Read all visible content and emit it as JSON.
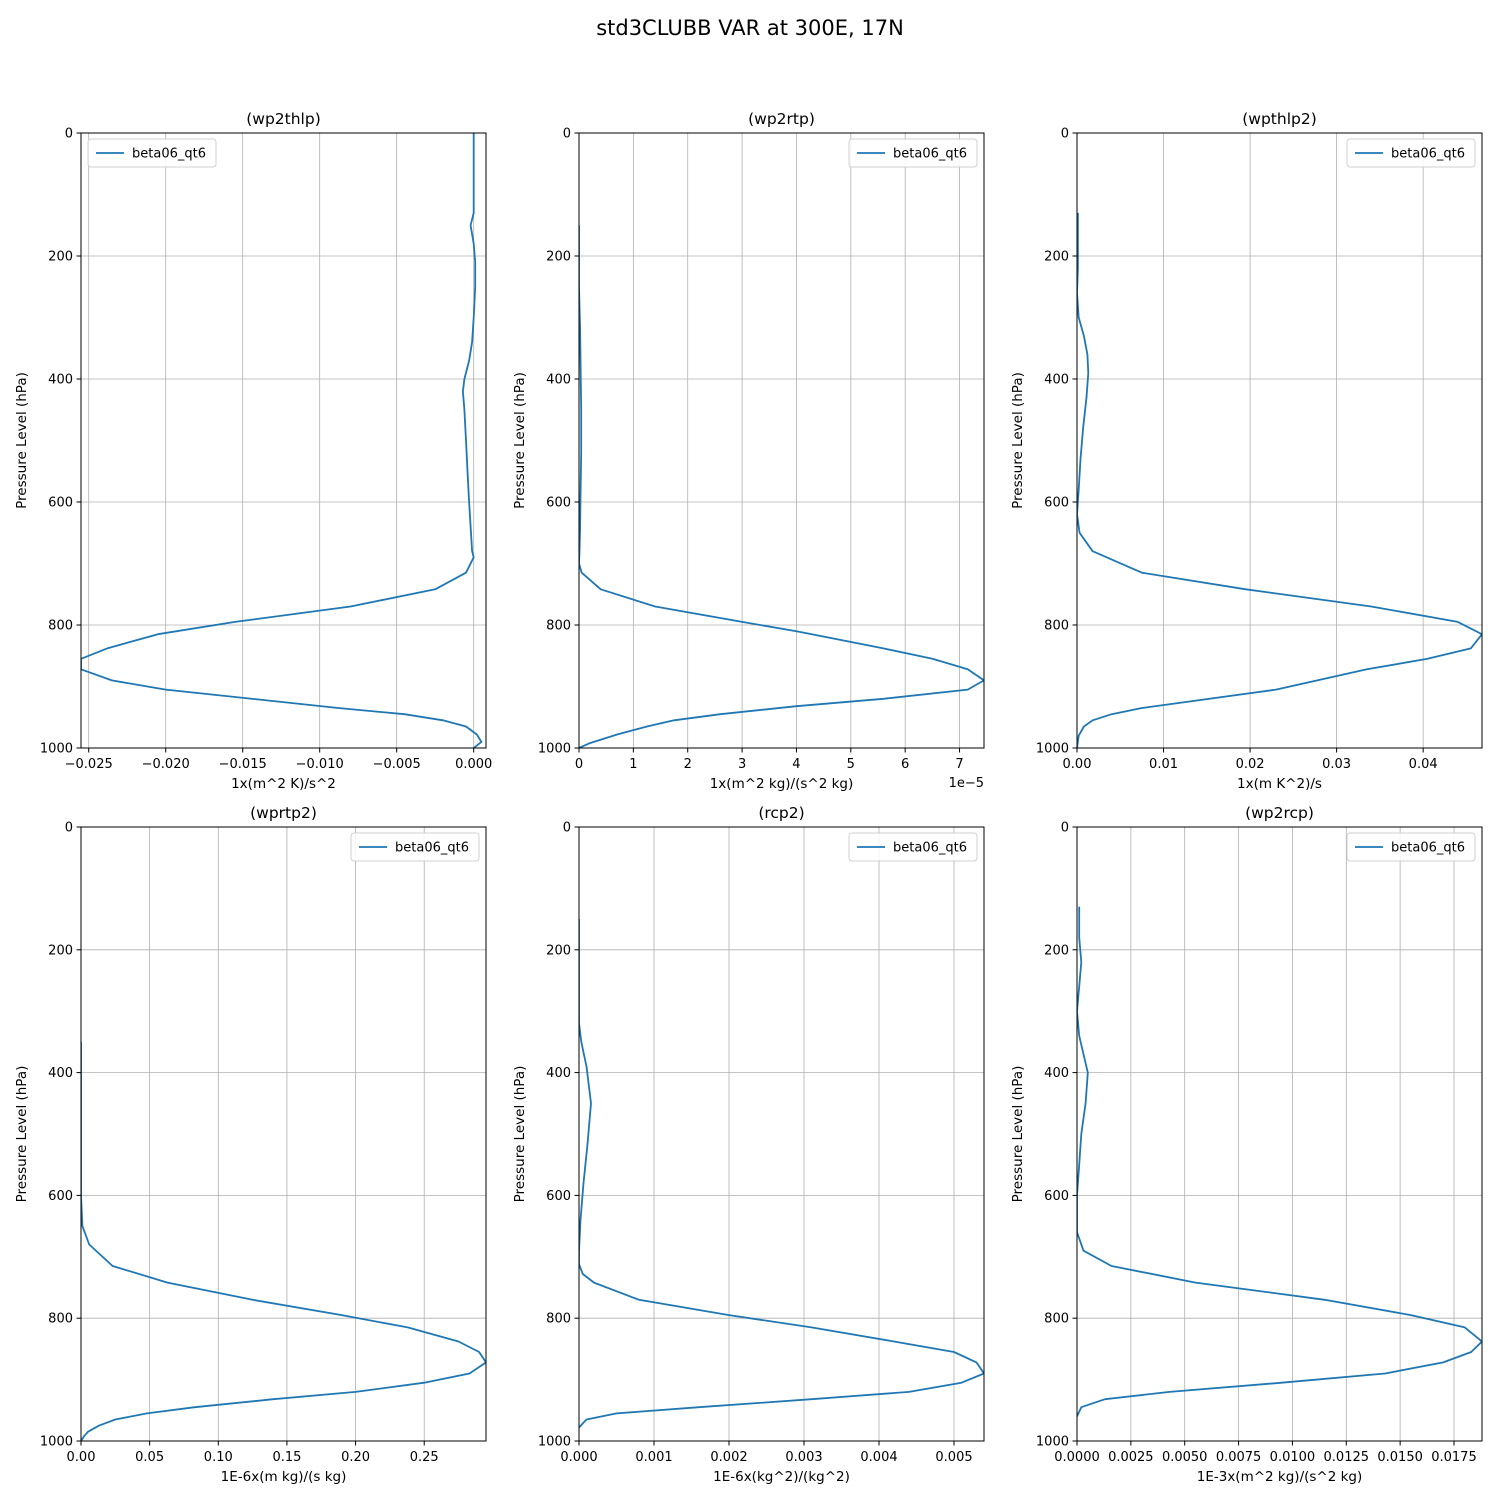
{
  "figure": {
    "title": "std3CLUBB VAR at 300E, 17N"
  },
  "chart_data": [
    {
      "type": "line",
      "title": "(wp2thlp)",
      "xlabel": "1x(m^2 K)/s^2",
      "ylabel": "Pressure Level (hPa)",
      "xlim": [
        -0.0255,
        0.0008
      ],
      "ylim": [
        1000,
        0
      ],
      "x_ticks": [
        -0.025,
        -0.02,
        -0.015,
        -0.01,
        -0.005,
        0.0
      ],
      "x_tick_labels": [
        "−0.025",
        "−0.020",
        "−0.015",
        "−0.010",
        "−0.005",
        "0.000"
      ],
      "y_ticks": [
        0,
        200,
        400,
        600,
        800,
        1000
      ],
      "y_tick_labels": [
        "0",
        "200",
        "400",
        "600",
        "800",
        "1000"
      ],
      "x_offset_label": "",
      "grid": true,
      "legend_position": "upper-left",
      "series": [
        {
          "name": "beta06_qt6",
          "color": "#1f77b4",
          "x": [
            0.0,
            0.0,
            0.0,
            0.0,
            -0.0002,
            0.0,
            0.0001,
            0.0001,
            0.0,
            -0.0001,
            -0.0003,
            -0.0006,
            -0.0007,
            -0.0006,
            -0.0005,
            -0.0004,
            -0.0003,
            -0.0002,
            -0.0001,
            0.0,
            -0.0005,
            -0.0025,
            -0.008,
            -0.0155,
            -0.0205,
            -0.0238,
            -0.0255,
            -0.0255,
            -0.0235,
            -0.02,
            -0.0088,
            -0.0045,
            -0.002,
            -0.0005,
            0.0002,
            0.0005,
            0.0
          ],
          "y": [
            0,
            50,
            100,
            130,
            150,
            180,
            210,
            250,
            300,
            340,
            370,
            400,
            420,
            450,
            500,
            550,
            600,
            640,
            680,
            690,
            715,
            742,
            770,
            795,
            815,
            838,
            855,
            872,
            890,
            905,
            935,
            945,
            955,
            965,
            978,
            990,
            1000
          ]
        }
      ]
    },
    {
      "type": "line",
      "title": "(wp2rtp)",
      "xlabel": "1x(m^2 kg)/(s^2 kg)",
      "ylabel": "Pressure Level (hPa)",
      "xlim": [
        0,
        7.45
      ],
      "ylim": [
        1000,
        0
      ],
      "x_ticks": [
        0,
        1,
        2,
        3,
        4,
        5,
        6,
        7
      ],
      "x_tick_labels": [
        "0",
        "1",
        "2",
        "3",
        "4",
        "5",
        "6",
        "7"
      ],
      "y_ticks": [
        0,
        200,
        400,
        600,
        800,
        1000
      ],
      "y_tick_labels": [
        "0",
        "200",
        "400",
        "600",
        "800",
        "1000"
      ],
      "x_offset_label": "1e−5",
      "grid": true,
      "legend_position": "upper-right",
      "series": [
        {
          "name": "beta06_qt6",
          "color": "#1f77b4",
          "x": [
            0.0,
            0.0,
            0.02,
            0.03,
            0.04,
            0.04,
            0.03,
            0.02,
            0.01,
            0.0,
            0.05,
            0.4,
            1.4,
            3.0,
            4.0,
            5.6,
            6.5,
            7.15,
            7.45,
            7.15,
            5.6,
            4.0,
            2.6,
            1.75,
            1.25,
            0.7,
            0.2,
            0.0
          ],
          "y": [
            150,
            250,
            320,
            380,
            450,
            520,
            580,
            640,
            680,
            700,
            715,
            742,
            770,
            795,
            810,
            838,
            855,
            872,
            890,
            905,
            920,
            932,
            945,
            955,
            965,
            978,
            992,
            1000
          ]
        }
      ]
    },
    {
      "type": "line",
      "title": "(wpthlp2)",
      "xlabel": "1x(m K^2)/s",
      "ylabel": "Pressure Level (hPa)",
      "xlim": [
        0,
        0.0468
      ],
      "ylim": [
        1000,
        0
      ],
      "x_ticks": [
        0.0,
        0.01,
        0.02,
        0.03,
        0.04
      ],
      "x_tick_labels": [
        "0.00",
        "0.01",
        "0.02",
        "0.03",
        "0.04"
      ],
      "y_ticks": [
        0,
        200,
        400,
        600,
        800,
        1000
      ],
      "y_tick_labels": [
        "0",
        "200",
        "400",
        "600",
        "800",
        "1000"
      ],
      "x_offset_label": "",
      "grid": true,
      "legend_position": "upper-right",
      "series": [
        {
          "name": "beta06_qt6",
          "color": "#1f77b4",
          "x": [
            0.0001,
            0.0001,
            0.0001,
            0.0,
            0.0002,
            0.0008,
            0.0012,
            0.0013,
            0.0011,
            0.0007,
            0.0004,
            0.0002,
            0.0,
            0.0003,
            0.0018,
            0.0075,
            0.0195,
            0.034,
            0.044,
            0.0468,
            0.0455,
            0.0405,
            0.0335,
            0.023,
            0.0075,
            0.004,
            0.0018,
            0.0008,
            0.0002,
            0.0
          ],
          "y": [
            130,
            180,
            220,
            260,
            300,
            330,
            360,
            390,
            430,
            480,
            530,
            580,
            620,
            650,
            680,
            715,
            742,
            770,
            795,
            815,
            838,
            855,
            872,
            905,
            935,
            945,
            955,
            965,
            980,
            1000
          ]
        }
      ]
    },
    {
      "type": "line",
      "title": "(wprtp2)",
      "xlabel": "1E-6x(m kg)/(s kg)",
      "ylabel": "Pressure Level (hPa)",
      "xlim": [
        0,
        0.295
      ],
      "ylim": [
        1000,
        0
      ],
      "x_ticks": [
        0.0,
        0.05,
        0.1,
        0.15,
        0.2,
        0.25
      ],
      "x_tick_labels": [
        "0.00",
        "0.05",
        "0.10",
        "0.15",
        "0.20",
        "0.25"
      ],
      "y_ticks": [
        0,
        200,
        400,
        600,
        800,
        1000
      ],
      "y_tick_labels": [
        "0",
        "200",
        "400",
        "600",
        "800",
        "1000"
      ],
      "x_offset_label": "",
      "grid": true,
      "legend_position": "upper-right",
      "series": [
        {
          "name": "beta06_qt6",
          "color": "#1f77b4",
          "x": [
            0.0,
            0.0,
            0.0,
            0.0,
            0.001,
            0.006,
            0.023,
            0.063,
            0.125,
            0.19,
            0.238,
            0.275,
            0.29,
            0.295,
            0.283,
            0.25,
            0.2,
            0.14,
            0.083,
            0.048,
            0.025,
            0.013,
            0.005,
            0.002,
            0.0
          ],
          "y": [
            350,
            450,
            550,
            600,
            650,
            680,
            715,
            742,
            770,
            795,
            815,
            838,
            855,
            872,
            890,
            905,
            920,
            932,
            945,
            955,
            965,
            975,
            985,
            993,
            1000
          ]
        }
      ]
    },
    {
      "type": "line",
      "title": "(rcp2)",
      "xlabel": "1E-6x(kg^2)/(kg^2)",
      "ylabel": "Pressure Level (hPa)",
      "xlim": [
        0,
        0.0054
      ],
      "ylim": [
        1000,
        0
      ],
      "x_ticks": [
        0.0,
        0.001,
        0.002,
        0.003,
        0.004,
        0.005
      ],
      "x_tick_labels": [
        "0.000",
        "0.001",
        "0.002",
        "0.003",
        "0.004",
        "0.005"
      ],
      "y_ticks": [
        0,
        200,
        400,
        600,
        800,
        1000
      ],
      "y_tick_labels": [
        "0",
        "200",
        "400",
        "600",
        "800",
        "1000"
      ],
      "x_offset_label": "",
      "grid": true,
      "legend_position": "upper-right",
      "series": [
        {
          "name": "beta06_qt6",
          "color": "#1f77b4",
          "x": [
            0.0,
            0.0,
            0.0,
            3e-05,
            0.0001,
            0.00016,
            0.00011,
            6e-05,
            2e-05,
            0.0,
            0.0,
            5e-05,
            0.0002,
            0.0008,
            0.002,
            0.0031,
            0.0042,
            0.005,
            0.0053,
            0.0054,
            0.0051,
            0.0044,
            0.0031,
            0.0016,
            0.0005,
            0.0001,
            0.0
          ],
          "y": [
            150,
            250,
            320,
            350,
            390,
            450,
            520,
            580,
            640,
            690,
            712,
            728,
            742,
            770,
            795,
            815,
            838,
            855,
            872,
            890,
            905,
            920,
            932,
            945,
            955,
            965,
            978
          ]
        }
      ]
    },
    {
      "type": "line",
      "title": "(wp2rcp)",
      "xlabel": "1E-3x(m^2 kg)/(s^2 kg)",
      "ylabel": "Pressure Level (hPa)",
      "xlim": [
        0,
        0.0188
      ],
      "ylim": [
        1000,
        0
      ],
      "x_ticks": [
        0.0,
        0.0025,
        0.005,
        0.0075,
        0.01,
        0.0125,
        0.015,
        0.0175
      ],
      "x_tick_labels": [
        "0.0000",
        "0.0025",
        "0.0050",
        "0.0075",
        "0.0100",
        "0.0125",
        "0.0150",
        "0.0175"
      ],
      "y_ticks": [
        0,
        200,
        400,
        600,
        800,
        1000
      ],
      "y_tick_labels": [
        "0",
        "200",
        "400",
        "600",
        "800",
        "1000"
      ],
      "x_offset_label": "",
      "grid": true,
      "legend_position": "upper-right",
      "series": [
        {
          "name": "beta06_qt6",
          "color": "#1f77b4",
          "x": [
            0.0001,
            0.0001,
            0.0002,
            0.0001,
            0.0,
            0.0001,
            0.0003,
            0.0005,
            0.0004,
            0.0002,
            0.0001,
            0.0,
            0.0,
            0.0003,
            0.0016,
            0.0055,
            0.0115,
            0.0155,
            0.018,
            0.0188,
            0.0183,
            0.017,
            0.0143,
            0.0095,
            0.0043,
            0.0013,
            0.0002,
            0.0
          ],
          "y": [
            130,
            180,
            220,
            260,
            300,
            340,
            370,
            400,
            450,
            500,
            550,
            600,
            660,
            690,
            715,
            742,
            770,
            795,
            815,
            838,
            855,
            872,
            890,
            905,
            920,
            932,
            945,
            960
          ]
        }
      ]
    }
  ]
}
